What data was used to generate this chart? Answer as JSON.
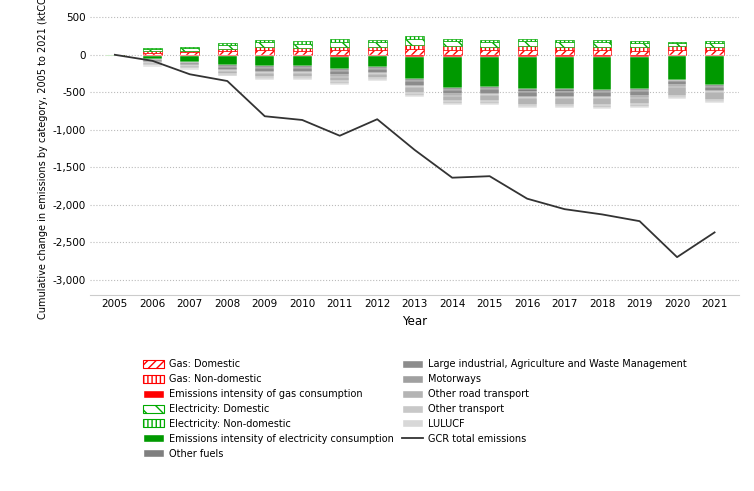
{
  "years": [
    2005,
    2006,
    2007,
    2008,
    2009,
    2010,
    2011,
    2012,
    2013,
    2014,
    2015,
    2016,
    2017,
    2018,
    2019,
    2020,
    2021
  ],
  "xlabel": "Year",
  "ylabel": "Cumulative change in emissions by category, 2005 to 2021 (ktCO2)",
  "ylim": [
    -3200,
    600
  ],
  "yticks": [
    500,
    0,
    -500,
    -1000,
    -1500,
    -2000,
    -2500,
    -3000
  ],
  "line_values": [
    0,
    -80,
    -260,
    -350,
    -820,
    -870,
    -1080,
    -860,
    -1270,
    -1640,
    -1620,
    -1920,
    -2060,
    -2130,
    -2220,
    -2700,
    -2370
  ],
  "bar_data": {
    "Gas: Domestic": [
      0,
      30,
      35,
      50,
      60,
      55,
      60,
      60,
      75,
      65,
      60,
      65,
      60,
      60,
      55,
      65,
      60
    ],
    "Gas: Non-domestic": [
      0,
      20,
      20,
      30,
      45,
      40,
      50,
      45,
      55,
      50,
      45,
      50,
      50,
      48,
      45,
      50,
      45
    ],
    "Emissions intensity of gas consumption": [
      0,
      -10,
      -12,
      -15,
      -20,
      -20,
      -25,
      -22,
      -30,
      -28,
      -25,
      -30,
      -30,
      -28,
      -28,
      -20,
      -22
    ],
    "Electricity: Domestic": [
      0,
      30,
      35,
      50,
      60,
      55,
      65,
      60,
      75,
      65,
      60,
      65,
      60,
      60,
      55,
      40,
      50
    ],
    "Electricity: Non-domestic": [
      0,
      15,
      18,
      25,
      30,
      28,
      35,
      32,
      40,
      35,
      32,
      35,
      33,
      32,
      30,
      22,
      28
    ],
    "Emissions intensity of electricity consumption": [
      0,
      -50,
      -80,
      -120,
      -130,
      -130,
      -165,
      -145,
      -290,
      -410,
      -410,
      -430,
      -430,
      -440,
      -430,
      -310,
      -380
    ],
    "Other fuels": [
      0,
      -15,
      -18,
      -22,
      -25,
      -25,
      -28,
      -25,
      -30,
      -28,
      -28,
      -30,
      -30,
      -28,
      -28,
      -22,
      -25
    ],
    "Large industrial, Agriculture and Waste Management": [
      0,
      -25,
      -28,
      -40,
      -50,
      -50,
      -55,
      -50,
      -65,
      -60,
      -60,
      -68,
      -68,
      -65,
      -65,
      -52,
      -55
    ],
    "Motorways": [
      0,
      -10,
      -10,
      -15,
      -18,
      -18,
      -18,
      -18,
      -20,
      -20,
      -20,
      -22,
      -22,
      -22,
      -22,
      -20,
      -20
    ],
    "Other road transport": [
      0,
      -25,
      -28,
      -40,
      -50,
      -50,
      -60,
      -52,
      -72,
      -75,
      -75,
      -85,
      -85,
      -88,
      -90,
      -130,
      -100
    ],
    "Other transport": [
      0,
      -15,
      -18,
      -25,
      -30,
      -28,
      -35,
      -30,
      -40,
      -35,
      -35,
      -38,
      -38,
      -38,
      -38,
      -28,
      -30
    ],
    "LULUCF": [
      0,
      -8,
      -8,
      -10,
      -10,
      -10,
      -12,
      -10,
      -12,
      -12,
      -12,
      -12,
      -12,
      -12,
      -12,
      -10,
      -10
    ]
  },
  "bar_facecolors": {
    "Gas: Domestic": "#ff0000",
    "Gas: Non-domestic": "#ff0000",
    "Emissions intensity of gas consumption": "#ff0000",
    "Electricity: Domestic": "#00aa00",
    "Electricity: Non-domestic": "#00aa00",
    "Emissions intensity of electricity consumption": "#009900",
    "Other fuels": "#7f7f7f",
    "Large industrial, Agriculture and Waste Management": "#8c8c8c",
    "Motorways": "#a0a0a0",
    "Other road transport": "#b4b4b4",
    "Other transport": "#c8c8c8",
    "LULUCF": "#d8d8d8"
  },
  "bar_hatches": {
    "Gas: Domestic": "////",
    "Gas: Non-domestic": "||||",
    "Emissions intensity of gas consumption": "",
    "Electricity: Domestic": "\\\\",
    "Electricity: Non-domestic": "||||",
    "Emissions intensity of electricity consumption": "",
    "Other fuels": "",
    "Large industrial, Agriculture and Waste Management": "",
    "Motorways": "",
    "Other road transport": "",
    "Other transport": "",
    "LULUCF": ""
  },
  "legend_labels": [
    "Gas: Domestic",
    "Gas: Non-domestic",
    "Emissions intensity of gas consumption",
    "Electricity: Domestic",
    "Electricity: Non-domestic",
    "Emissions intensity of electricity consumption",
    "Other fuels",
    "Large industrial, Agriculture and Waste Management",
    "Motorways",
    "Other road transport",
    "Other transport",
    "LULUCF",
    "GCR total emissions"
  ],
  "bar_width": 0.5,
  "background_color": "#ffffff",
  "grid_color": "#bbbbbb",
  "line_color": "#333333"
}
